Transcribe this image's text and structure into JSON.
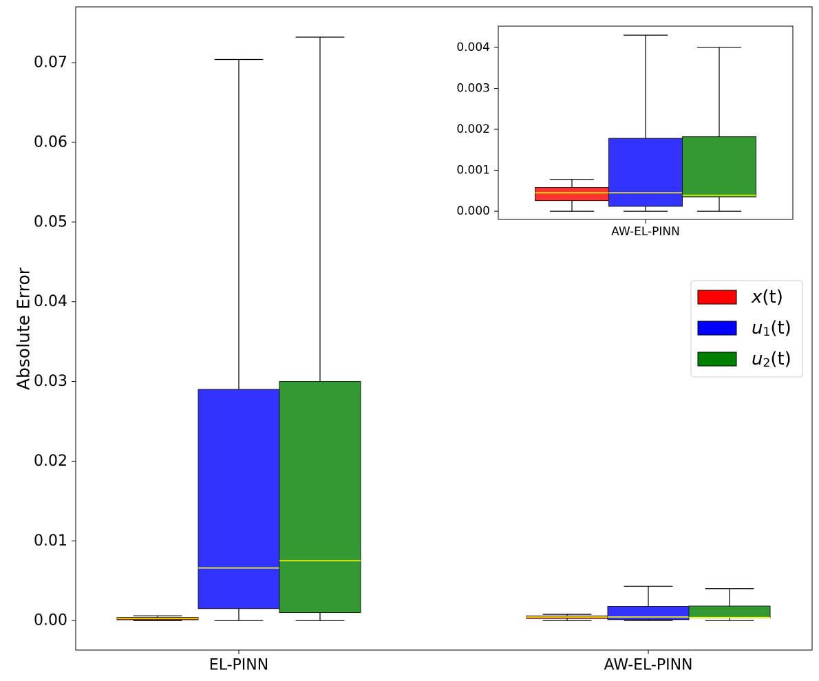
{
  "chart_data": [
    {
      "type": "box",
      "ylabel": "Absolute Error",
      "categories": [
        "EL-PINN",
        "AW-EL-PINN"
      ],
      "ylim": [
        -0.0037,
        0.077
      ],
      "yticks": [
        "0.00",
        "0.01",
        "0.02",
        "0.03",
        "0.04",
        "0.05",
        "0.06",
        "0.07"
      ],
      "grid": false,
      "legend": {
        "placement": "right",
        "entries": [
          {
            "base": "x",
            "sub": "",
            "suffix": "(t)",
            "color": "#ff0000"
          },
          {
            "base": "u",
            "sub": "1",
            "suffix": "(t)",
            "color": "#0000ff"
          },
          {
            "base": "u",
            "sub": "2",
            "suffix": "(t)",
            "color": "#008000"
          }
        ]
      },
      "series": [
        {
          "color": "#ff3333",
          "boxes": [
            {
              "category": "EL-PINN",
              "whislo": 0.0,
              "q1": 0.0001,
              "med": 0.0003,
              "q3": 0.0004,
              "whishi": 0.0006
            },
            {
              "category": "AW-EL-PINN",
              "whislo": 0.0,
              "q1": 0.00026,
              "med": 0.00045,
              "q3": 0.00058,
              "whishi": 0.00078
            }
          ]
        },
        {
          "color": "#3333ff",
          "boxes": [
            {
              "category": "EL-PINN",
              "whislo": 0.0,
              "q1": 0.0015,
              "med": 0.0066,
              "q3": 0.029,
              "whishi": 0.0704
            },
            {
              "category": "AW-EL-PINN",
              "whislo": 0.0,
              "q1": 0.00012,
              "med": 0.00045,
              "q3": 0.00178,
              "whishi": 0.0043
            }
          ]
        },
        {
          "color": "#339933",
          "boxes": [
            {
              "category": "EL-PINN",
              "whislo": 0.0,
              "q1": 0.001,
              "med": 0.0075,
              "q3": 0.03,
              "whishi": 0.0732
            },
            {
              "category": "AW-EL-PINN",
              "whislo": 0.0,
              "q1": 0.00035,
              "med": 0.00039,
              "q3": 0.00182,
              "whishi": 0.004
            }
          ]
        }
      ]
    },
    {
      "type": "box",
      "role": "inset",
      "categories": [
        "AW-EL-PINN"
      ],
      "ylim": [
        -0.0002,
        0.00452
      ],
      "yticks": [
        "0.000",
        "0.001",
        "0.002",
        "0.003",
        "0.004"
      ],
      "grid": false,
      "series": [
        {
          "color": "#ff3333",
          "boxes": [
            {
              "category": "AW-EL-PINN",
              "whislo": 0.0,
              "q1": 0.00026,
              "med": 0.00045,
              "q3": 0.00058,
              "whishi": 0.00078
            }
          ]
        },
        {
          "color": "#3333ff",
          "boxes": [
            {
              "category": "AW-EL-PINN",
              "whislo": 0.0,
              "q1": 0.00012,
              "med": 0.00045,
              "q3": 0.00178,
              "whishi": 0.0043
            }
          ]
        },
        {
          "color": "#339933",
          "boxes": [
            {
              "category": "AW-EL-PINN",
              "whislo": 0.0,
              "q1": 0.00035,
              "med": 0.00039,
              "q3": 0.00182,
              "whishi": 0.004
            }
          ]
        }
      ]
    }
  ]
}
